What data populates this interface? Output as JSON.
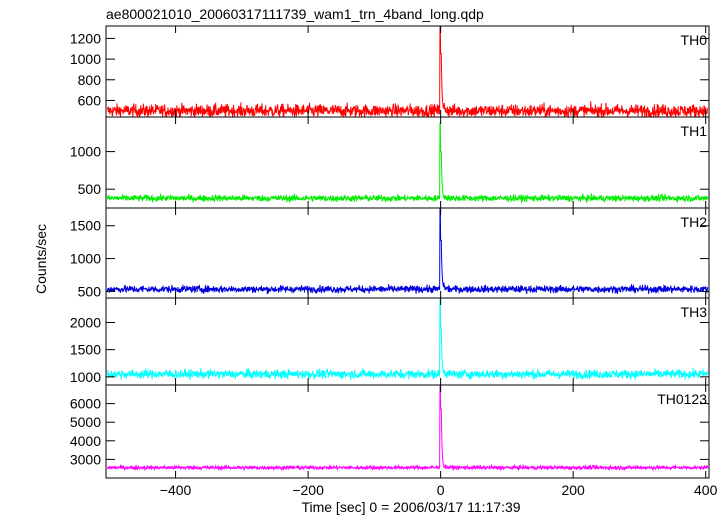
{
  "chart_data": {
    "type": "line",
    "title": "ae800021010_20060317111739_wam1_trn_4band_long.qdp",
    "xlabel": "Time [sec] 0 = 2006/03/17 11:17:39",
    "ylabel": "Counts/sec",
    "xlim": [
      -505,
      405
    ],
    "xticks": [
      -400,
      -200,
      0,
      200,
      400
    ],
    "grid": false,
    "panels": [
      {
        "name": "TH0",
        "color": "#ff0000",
        "ylim": [
          440,
          1320
        ],
        "yticks": [
          600,
          800,
          1000,
          1200
        ],
        "baseline": 500,
        "noise": 32,
        "peak": 1320,
        "secondary": 1050
      },
      {
        "name": "TH1",
        "color": "#00ee00",
        "ylim": [
          250,
          1460
        ],
        "yticks": [
          500,
          1000
        ],
        "baseline": 380,
        "noise": 22,
        "peak": 1380,
        "secondary": 1000
      },
      {
        "name": "TH2",
        "color": "#0000dd",
        "ylim": [
          400,
          1770
        ],
        "yticks": [
          500,
          1000,
          1500
        ],
        "baseline": 535,
        "noise": 28,
        "peak": 1770,
        "secondary": 1280
      },
      {
        "name": "TH3",
        "color": "#00ffff",
        "ylim": [
          850,
          2450
        ],
        "yticks": [
          1000,
          1500,
          2000
        ],
        "baseline": 1050,
        "noise": 42,
        "peak": 2450,
        "secondary": 1900
      },
      {
        "name": "TH0123",
        "color": "#ff00ff",
        "ylim": [
          2000,
          7000
        ],
        "yticks": [
          3000,
          4000,
          5000,
          6000
        ],
        "baseline": 2560,
        "noise": 55,
        "peak": 7000,
        "secondary": 5700
      }
    ]
  }
}
